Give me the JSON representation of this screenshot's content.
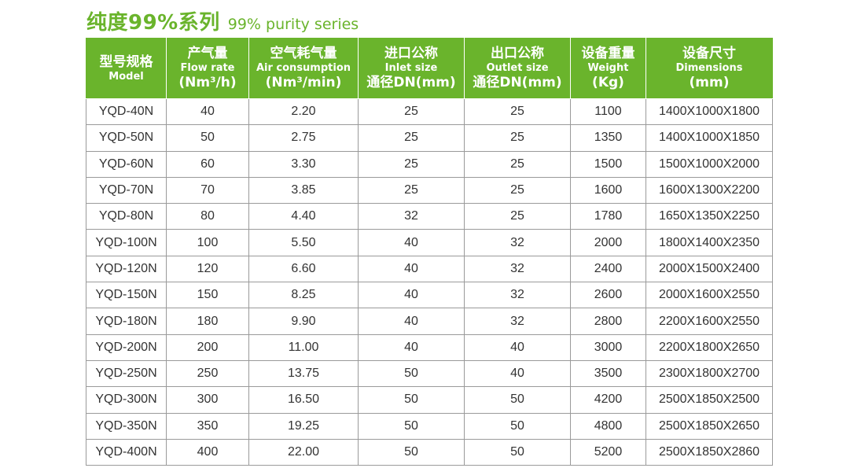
{
  "title": {
    "zh": "纯度99%系列",
    "en": "99% purity series"
  },
  "colors": {
    "accent": "#6ab42c",
    "grid": "#9a9a9a",
    "text": "#333333"
  },
  "columns": [
    {
      "zh": "型号规格",
      "en": "Model",
      "unit": ""
    },
    {
      "zh": "产气量",
      "en": "Flow rate",
      "unit": "(Nm³/h)"
    },
    {
      "zh": "空气耗气量",
      "en": "Air consumption",
      "unit": "(Nm³/min)"
    },
    {
      "zh": "进口公称",
      "en": "Inlet size",
      "unit": "通径DN(mm)"
    },
    {
      "zh": "出口公称",
      "en": "Outlet size",
      "unit": "通径DN(mm)"
    },
    {
      "zh": "设备重量",
      "en": "Weight",
      "unit": "(Kg)"
    },
    {
      "zh": "设备尺寸",
      "en": "Dimensions",
      "unit": "(mm)"
    }
  ],
  "rows": [
    [
      "YQD-40N",
      "40",
      "2.20",
      "25",
      "25",
      "1100",
      "1400X1000X1800"
    ],
    [
      "YQD-50N",
      "50",
      "2.75",
      "25",
      "25",
      "1350",
      "1400X1000X1850"
    ],
    [
      "YQD-60N",
      "60",
      "3.30",
      "25",
      "25",
      "1500",
      "1500X1000X2000"
    ],
    [
      "YQD-70N",
      "70",
      "3.85",
      "25",
      "25",
      "1600",
      "1600X1300X2200"
    ],
    [
      "YQD-80N",
      "80",
      "4.40",
      "32",
      "25",
      "1780",
      "1650X1350X2250"
    ],
    [
      "YQD-100N",
      "100",
      "5.50",
      "40",
      "32",
      "2000",
      "1800X1400X2350"
    ],
    [
      "YQD-120N",
      "120",
      "6.60",
      "40",
      "32",
      "2400",
      "2000X1500X2400"
    ],
    [
      "YQD-150N",
      "150",
      "8.25",
      "40",
      "32",
      "2600",
      "2000X1600X2550"
    ],
    [
      "YQD-180N",
      "180",
      "9.90",
      "40",
      "32",
      "2800",
      "2200X1600X2550"
    ],
    [
      "YQD-200N",
      "200",
      "11.00",
      "40",
      "40",
      "3000",
      "2200X1800X2650"
    ],
    [
      "YQD-250N",
      "250",
      "13.75",
      "50",
      "40",
      "3500",
      "2300X1800X2700"
    ],
    [
      "YQD-300N",
      "300",
      "16.50",
      "50",
      "50",
      "4200",
      "2500X1850X2500"
    ],
    [
      "YQD-350N",
      "350",
      "19.25",
      "50",
      "50",
      "4800",
      "2500X1850X2650"
    ],
    [
      "YQD-400N",
      "400",
      "22.00",
      "50",
      "50",
      "5200",
      "2500X1850X2860"
    ]
  ]
}
